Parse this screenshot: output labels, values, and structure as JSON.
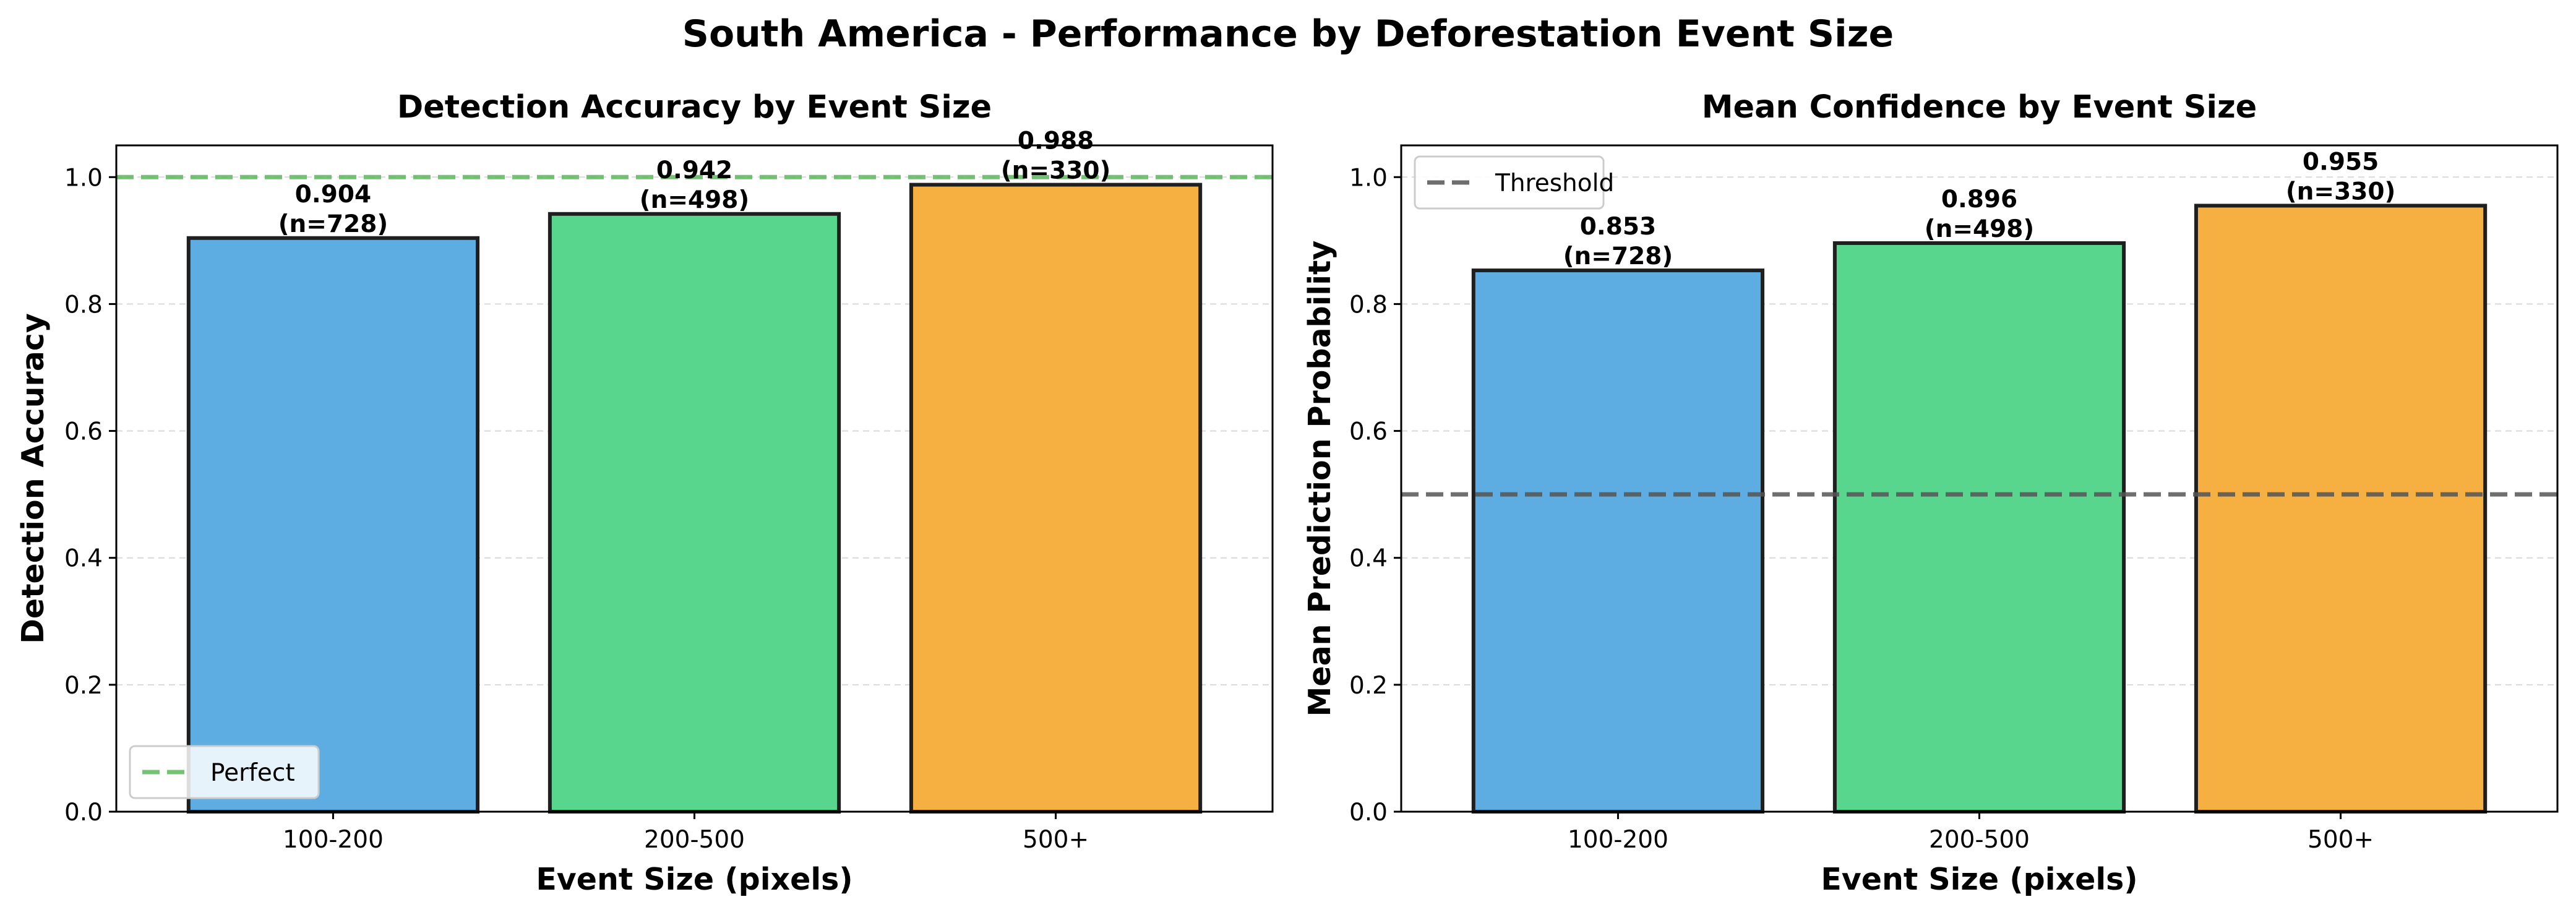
{
  "figure": {
    "suptitle": "South America - Performance by Deforestation Event Size"
  },
  "chart_data": [
    {
      "type": "bar",
      "title": "Detection Accuracy by Event Size",
      "xlabel": "Event Size (pixels)",
      "ylabel": "Detection Accuracy",
      "categories": [
        "100-200",
        "200-500",
        "500+"
      ],
      "values": [
        0.904,
        0.942,
        0.988
      ],
      "annotations": [
        "0.904\n(n=728)",
        "0.942\n(n=498)",
        "0.988\n(n=330)"
      ],
      "colors": [
        "#5DADE2",
        "#58D68D",
        "#F5B041"
      ],
      "ylim": [
        0,
        1.05
      ],
      "yticks": [
        0.0,
        0.2,
        0.4,
        0.6,
        0.8,
        1.0
      ],
      "ytick_labels": [
        "0.0",
        "0.2",
        "0.4",
        "0.6",
        "0.8",
        "1.0"
      ],
      "reference_line": {
        "value": 1.0,
        "label": "Perfect",
        "color": "#5CB85C",
        "style": "dashed"
      },
      "legend_position": "lower-left",
      "grid": "y-dashed"
    },
    {
      "type": "bar",
      "title": "Mean Confidence by Event Size",
      "xlabel": "Event Size (pixels)",
      "ylabel": "Mean Prediction Probability",
      "categories": [
        "100-200",
        "200-500",
        "500+"
      ],
      "values": [
        0.853,
        0.896,
        0.955
      ],
      "annotations": [
        "0.853\n(n=728)",
        "0.896\n(n=498)",
        "0.955\n(n=330)"
      ],
      "colors": [
        "#5DADE2",
        "#58D68D",
        "#F5B041"
      ],
      "ylim": [
        0,
        1.05
      ],
      "yticks": [
        0.0,
        0.2,
        0.4,
        0.6,
        0.8,
        1.0
      ],
      "ytick_labels": [
        "0.0",
        "0.2",
        "0.4",
        "0.6",
        "0.8",
        "1.0"
      ],
      "reference_line": {
        "value": 0.5,
        "label": "Threshold",
        "color": "#555555",
        "style": "dashed"
      },
      "legend_position": "upper-left",
      "grid": "y-dashed"
    }
  ]
}
